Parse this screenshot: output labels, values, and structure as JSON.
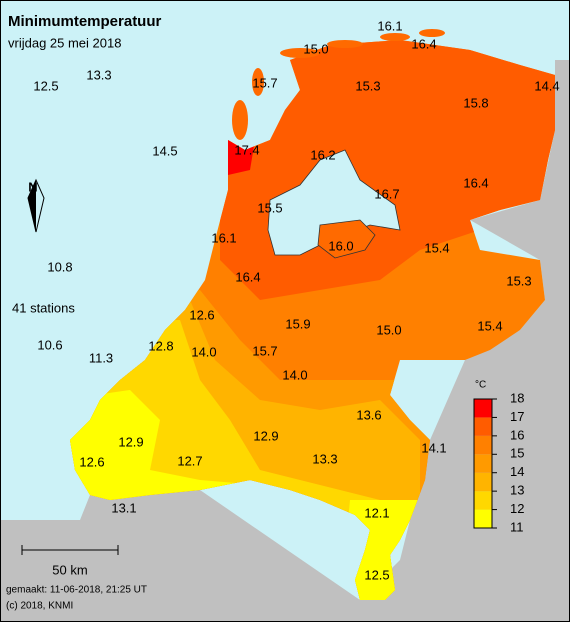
{
  "title": "Minimumtemperatuur",
  "subtitle": "vrijdag 25 mei 2018",
  "stations": [
    "16.1",
    "16.4",
    "15.0",
    "12.5",
    "13.3",
    "15.7",
    "15.3",
    "15.8",
    "14.4",
    "14.5",
    "17.4",
    "16.2",
    "16.4",
    "16.7",
    "15.5",
    "16.1",
    "16.0",
    "15.4",
    "10.8",
    "15.3",
    "16.4",
    "12.6",
    "15.9",
    "15.0",
    "15.4",
    "10.6",
    "11.3",
    "12.8",
    "14.0",
    "15.7",
    "14.0",
    "13.6",
    "12.9",
    "12.9",
    "14.1",
    "13.3",
    "12.6",
    "12.7",
    "13.1",
    "12.1",
    "12.5"
  ],
  "station_count": "41 stations",
  "north": "N",
  "scale": "50 km",
  "footer": [
    "gemaakt: 11-06-2018, 21:25 UT",
    "(c) 2018, KNMI"
  ],
  "legend": {
    "unit": "°C",
    "ticks": [
      11,
      12,
      13,
      14,
      15,
      16,
      17,
      18
    ],
    "colors": [
      "#ffff00",
      "#ffd800",
      "#ffb400",
      "#ff9a00",
      "#ff8000",
      "#ff5c00",
      "#ff0000"
    ]
  }
}
